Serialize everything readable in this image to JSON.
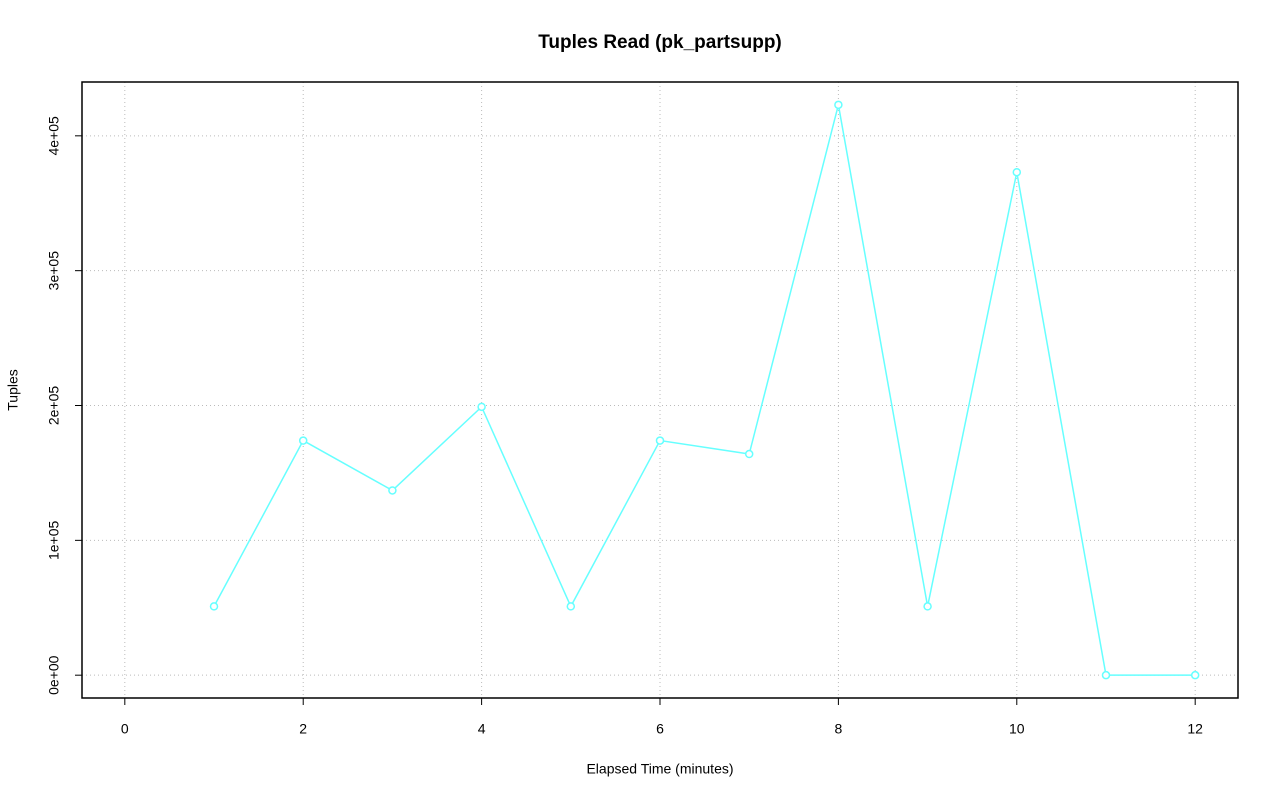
{
  "chart_data": {
    "type": "line",
    "title": "Tuples Read (pk_partsupp)",
    "x_label": "Elapsed Time (minutes)",
    "y_label": "Tuples",
    "x": [
      1,
      2,
      3,
      4,
      5,
      6,
      7,
      8,
      9,
      10,
      11,
      12
    ],
    "series": [
      {
        "name": "pk_partsupp",
        "color": "#66ffff",
        "values": [
          51000,
          174000,
          137000,
          199000,
          51000,
          174000,
          164000,
          423000,
          51000,
          373000,
          0,
          0
        ]
      }
    ],
    "xlim": [
      -0.48,
      12.48
    ],
    "xticks": [
      0,
      2,
      4,
      6,
      8,
      10,
      12
    ],
    "ylim": [
      -16920,
      439920
    ],
    "yticks": [
      {
        "value": 0,
        "label": "0e+00"
      },
      {
        "value": 100000,
        "label": "1e+05"
      },
      {
        "value": 200000,
        "label": "2e+05"
      },
      {
        "value": 300000,
        "label": "3e+05"
      },
      {
        "value": 400000,
        "label": "4e+05"
      }
    ],
    "grid": true,
    "markers": true
  }
}
